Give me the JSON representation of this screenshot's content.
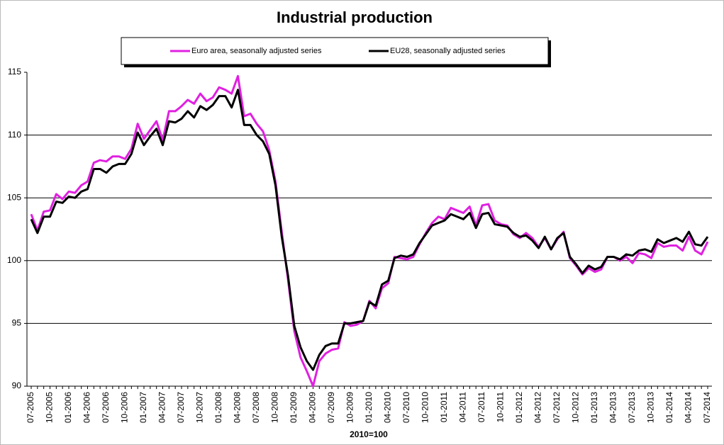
{
  "chart_data": {
    "type": "line",
    "title": "Industrial production",
    "x_label": "2010=100",
    "categories": [
      "07-2005",
      null,
      null,
      "10-2005",
      null,
      null,
      "01-2006",
      null,
      null,
      "04-2006",
      null,
      null,
      "07-2006",
      null,
      null,
      "10-2006",
      null,
      null,
      "01-2007",
      null,
      null,
      "04-2007",
      null,
      null,
      "07-2007",
      null,
      null,
      "10-2007",
      null,
      null,
      "01-2008",
      null,
      null,
      "04-2008",
      null,
      null,
      "07-2008",
      null,
      null,
      "10-2008",
      null,
      null,
      "01-2009",
      null,
      null,
      "04-2009",
      null,
      null,
      "07-2009",
      null,
      null,
      "10-2009",
      null,
      null,
      "01-2010",
      null,
      null,
      "04-2010",
      null,
      null,
      "07-2010",
      null,
      null,
      "10-2010",
      null,
      null,
      "01-2011",
      null,
      null,
      "04-2011",
      null,
      null,
      "07-2011",
      null,
      null,
      "10-2011",
      null,
      null,
      "01-2012",
      null,
      null,
      "04-2012",
      null,
      null,
      "07-2012",
      null,
      null,
      "10-2012",
      null,
      null,
      "01-2013",
      null,
      null,
      "04-2013",
      null,
      null,
      "07-2013",
      null,
      null,
      "10-2013",
      null,
      null,
      "01-2014",
      null,
      null,
      "04-2014",
      null,
      null,
      "07-2014"
    ],
    "series": [
      {
        "name": "Euro area, seasonally adjusted series",
        "color": "#e020e0",
        "values": [
          103.7,
          102.4,
          103.9,
          104.0,
          105.3,
          104.9,
          105.5,
          105.4,
          106.0,
          106.3,
          107.8,
          108.0,
          107.9,
          108.3,
          108.3,
          108.1,
          108.9,
          110.9,
          109.7,
          110.4,
          111.1,
          109.6,
          111.9,
          111.9,
          112.3,
          112.8,
          112.5,
          113.3,
          112.7,
          113.0,
          113.8,
          113.6,
          113.3,
          114.7,
          111.5,
          111.7,
          110.9,
          110.3,
          108.8,
          106.3,
          102.3,
          98.5,
          94.4,
          92.3,
          91.2,
          90.0,
          92.0,
          92.6,
          92.9,
          93.0,
          95.1,
          94.8,
          94.9,
          95.2,
          96.8,
          96.2,
          97.8,
          98.2,
          100.3,
          100.2,
          100.1,
          100.3,
          101.3,
          102.2,
          103.0,
          103.5,
          103.3,
          104.2,
          104.0,
          103.8,
          104.3,
          102.8,
          104.4,
          104.5,
          103.2,
          102.9,
          102.8,
          102.1,
          101.8,
          102.2,
          101.8,
          101.1,
          101.8,
          100.9,
          101.7,
          102.3,
          100.2,
          99.6,
          98.9,
          99.4,
          99.1,
          99.3,
          100.3,
          100.3,
          100.0,
          100.3,
          99.8,
          100.6,
          100.5,
          100.2,
          101.4,
          101.1,
          101.2,
          101.2,
          100.8,
          101.9,
          100.8,
          100.5,
          101.5
        ]
      },
      {
        "name": "EU28, seasonally adjusted series",
        "color": "#000000",
        "values": [
          103.3,
          102.2,
          103.5,
          103.5,
          104.7,
          104.6,
          105.1,
          105.0,
          105.5,
          105.7,
          107.3,
          107.3,
          107.0,
          107.5,
          107.7,
          107.7,
          108.5,
          110.2,
          109.2,
          109.9,
          110.5,
          109.2,
          111.1,
          111.0,
          111.3,
          111.9,
          111.4,
          112.3,
          112.0,
          112.4,
          113.1,
          113.1,
          112.2,
          113.6,
          110.8,
          110.8,
          110.0,
          109.5,
          108.5,
          106.0,
          101.9,
          98.8,
          94.8,
          93.1,
          92.0,
          91.3,
          92.5,
          93.2,
          93.4,
          93.4,
          95.0,
          95.0,
          95.1,
          95.2,
          96.7,
          96.4,
          98.1,
          98.4,
          100.2,
          100.4,
          100.3,
          100.5,
          101.4,
          102.1,
          102.8,
          103.0,
          103.2,
          103.7,
          103.5,
          103.3,
          103.8,
          102.6,
          103.7,
          103.8,
          102.9,
          102.8,
          102.7,
          102.2,
          101.9,
          102.0,
          101.6,
          101.0,
          101.9,
          100.9,
          101.8,
          102.2,
          100.3,
          99.7,
          99.0,
          99.6,
          99.3,
          99.5,
          100.3,
          100.3,
          100.1,
          100.5,
          100.4,
          100.8,
          100.9,
          100.7,
          101.7,
          101.4,
          101.6,
          101.8,
          101.5,
          102.3,
          101.3,
          101.2,
          101.9
        ]
      }
    ],
    "ylim": [
      90,
      115
    ],
    "yticks": [
      90,
      95,
      100,
      105,
      110,
      115
    ],
    "grid": true,
    "legend": "top"
  }
}
